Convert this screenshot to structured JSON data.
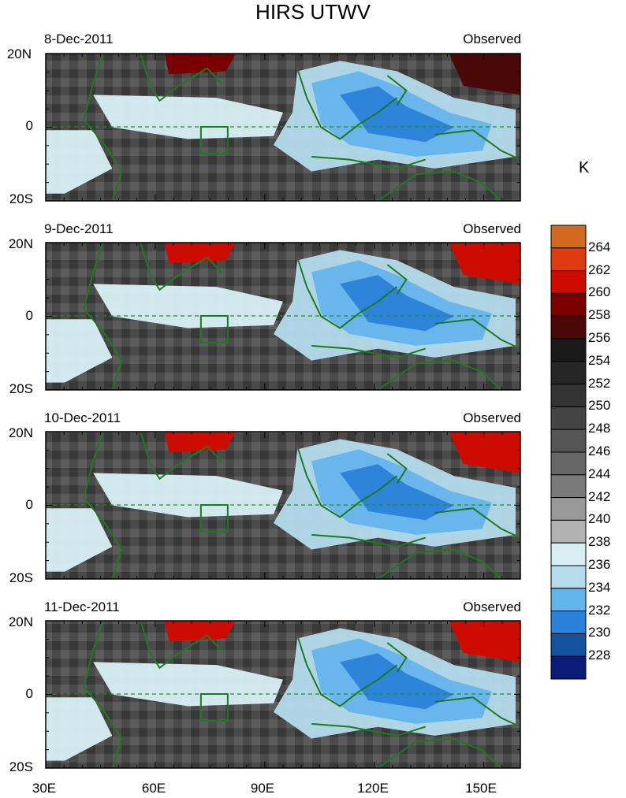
{
  "title": "HIRS UTWV",
  "panels": [
    {
      "date": "8-Dec-2011",
      "tag": "Observed"
    },
    {
      "date": "9-Dec-2011",
      "tag": "Observed"
    },
    {
      "date": "10-Dec-2011",
      "tag": "Observed"
    },
    {
      "date": "11-Dec-2011",
      "tag": "Observed"
    }
  ],
  "lat_labels": [
    "20N",
    "0",
    "20S"
  ],
  "lon_labels": [
    "30E",
    "60E",
    "90E",
    "120E",
    "150E"
  ],
  "colorbar": {
    "unit": "K",
    "labels": [
      "264",
      "262",
      "260",
      "258",
      "256",
      "254",
      "252",
      "250",
      "248",
      "246",
      "244",
      "242",
      "240",
      "238",
      "236",
      "234",
      "232",
      "230",
      "228"
    ],
    "colors": [
      "#d2691e",
      "#e03a10",
      "#cc0c00",
      "#7a0000",
      "#4a0808",
      "#1a1a1a",
      "#262626",
      "#333333",
      "#444444",
      "#555555",
      "#666666",
      "#7a7a7a",
      "#999999",
      "#b2b2b2",
      "#d8f0f4",
      "#b4dcec",
      "#64b4ec",
      "#2a82d8",
      "#1452a0",
      "#0c1a78"
    ]
  },
  "colors": {
    "coast": "#1e7a1e",
    "equator": "#2a8a2a"
  }
}
